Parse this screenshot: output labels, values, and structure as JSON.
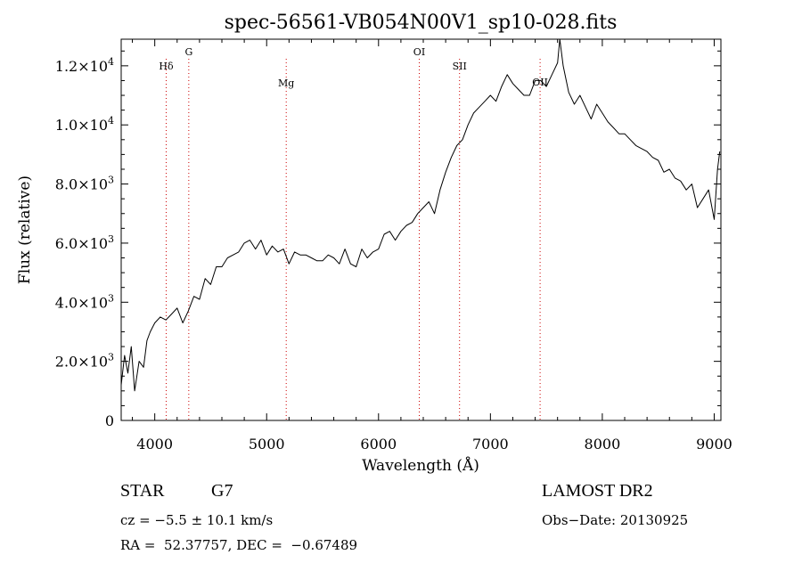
{
  "chart_data": {
    "type": "line",
    "title": "spec-56561-VB054N00V1_sp10-028.fits",
    "xlabel": "Wavelength (Å)",
    "ylabel": "Flux (relative)",
    "xlim": [
      3700,
      9060
    ],
    "ylim": [
      0,
      12900
    ],
    "x_ticks": [
      4000,
      5000,
      6000,
      7000,
      8000,
      9000
    ],
    "x_tick_labels": [
      "4000",
      "5000",
      "6000",
      "7000",
      "8000",
      "9000"
    ],
    "y_ticks": [
      {
        "value": 0,
        "mant": "0",
        "exp": ""
      },
      {
        "value": 2000,
        "mant": "2.0×10",
        "exp": "3"
      },
      {
        "value": 4000,
        "mant": "4.0×10",
        "exp": "3"
      },
      {
        "value": 6000,
        "mant": "6.0×10",
        "exp": "3"
      },
      {
        "value": 8000,
        "mant": "8.0×10",
        "exp": "3"
      },
      {
        "value": 10000,
        "mant": "1.0×10",
        "exp": "4"
      },
      {
        "value": 12000,
        "mant": "1.2×10",
        "exp": "4"
      }
    ],
    "lines": [
      {
        "label": "Hδ",
        "x": 4102
      },
      {
        "label": "G",
        "x": 4304
      },
      {
        "label": "Mg",
        "x": 5175
      },
      {
        "label": "OI",
        "x": 6364
      },
      {
        "label": "SII",
        "x": 6724
      },
      {
        "label": "OII",
        "x": 7444
      }
    ],
    "line_color": "#cc0000",
    "series": [
      {
        "x": [
          3700,
          3730,
          3760,
          3790,
          3820,
          3860,
          3900,
          3930,
          3960,
          4000,
          4050,
          4100,
          4150,
          4200,
          4250,
          4300,
          4350,
          4400,
          4450,
          4500,
          4550,
          4600,
          4650,
          4700,
          4750,
          4800,
          4850,
          4900,
          4950,
          5000,
          5050,
          5100,
          5150,
          5200,
          5250,
          5300,
          5350,
          5400,
          5450,
          5500,
          5550,
          5600,
          5650,
          5700,
          5750,
          5800,
          5850,
          5900,
          5950,
          6000,
          6050,
          6100,
          6150,
          6200,
          6250,
          6300,
          6350,
          6400,
          6450,
          6500,
          6550,
          6600,
          6650,
          6700,
          6750,
          6800,
          6850,
          6900,
          6950,
          7000,
          7050,
          7100,
          7150,
          7200,
          7250,
          7300,
          7350,
          7400,
          7450,
          7500,
          7550,
          7600,
          7620,
          7650,
          7700,
          7750,
          7800,
          7850,
          7900,
          7950,
          8000,
          8050,
          8100,
          8150,
          8200,
          8250,
          8300,
          8350,
          8400,
          8450,
          8500,
          8550,
          8600,
          8650,
          8700,
          8750,
          8800,
          8850,
          8900,
          8950,
          9000,
          9030,
          9050
        ],
        "y": [
          1200,
          2200,
          1600,
          2500,
          1000,
          2000,
          1800,
          2700,
          3000,
          3300,
          3500,
          3400,
          3600,
          3800,
          3300,
          3700,
          4200,
          4100,
          4800,
          4600,
          5200,
          5200,
          5500,
          5600,
          5700,
          6000,
          6100,
          5800,
          6100,
          5600,
          5900,
          5700,
          5800,
          5300,
          5700,
          5600,
          5600,
          5500,
          5400,
          5400,
          5600,
          5500,
          5300,
          5800,
          5300,
          5200,
          5800,
          5500,
          5700,
          5800,
          6300,
          6400,
          6100,
          6400,
          6600,
          6700,
          7000,
          7200,
          7400,
          7000,
          7800,
          8400,
          8900,
          9300,
          9500,
          10000,
          10400,
          10600,
          10800,
          11000,
          10800,
          11300,
          11700,
          11400,
          11200,
          11000,
          11000,
          11500,
          11500,
          11300,
          11700,
          12100,
          12900,
          12000,
          11100,
          10700,
          11000,
          10600,
          10200,
          10700,
          10400,
          10100,
          9900,
          9700,
          9700,
          9500,
          9300,
          9200,
          9100,
          8900,
          8800,
          8400,
          8500,
          8200,
          8100,
          7800,
          8000,
          7200,
          7500,
          7800,
          6800,
          8500,
          9100
        ]
      }
    ],
    "grid": false
  },
  "info": {
    "class_label": "STAR",
    "subclass": "G7",
    "survey": "LAMOST DR2",
    "velocity": "cz = −5.5 ± 10.1 km/s",
    "obs_date": "Obs−Date: 20130925",
    "coords": "RA =  52.37757, DEC =  −0.67489"
  }
}
